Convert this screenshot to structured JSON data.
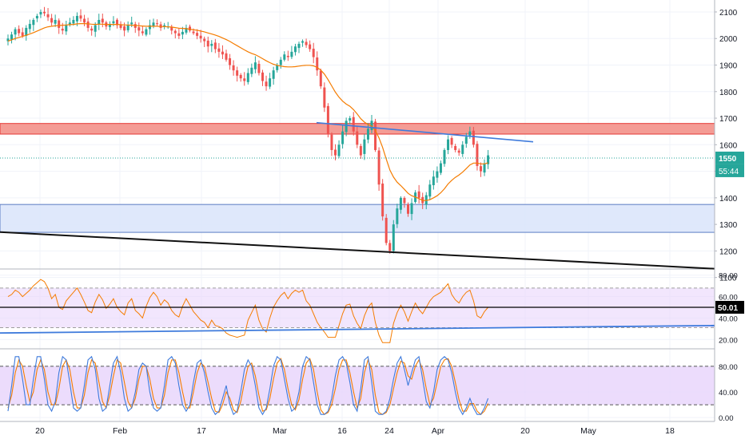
{
  "colors": {
    "bull": "#26a69a",
    "bear": "#ef5350",
    "ma": "#f57c00",
    "resistance_fill": "#f28b82",
    "resistance_edge": "#e53935",
    "support_fill": "#dbe6fb",
    "support_edge": "#5b7cc4",
    "trendline_blue": "#3f7bdc",
    "trendline_black": "#111111",
    "price_tag": "#26a69a",
    "osc_band": "#e9d6fb",
    "rsi_line": "#f57c00",
    "stoch_k": "#3f7bdc",
    "stoch_d": "#f57c00",
    "level_tag": "#000000"
  },
  "chart_data": [
    {
      "type": "candlestick",
      "pane": "price",
      "ylim": [
        1135,
        2145
      ],
      "yticks": [
        "2100",
        "2000",
        "1900",
        "1800",
        "1700",
        "1600",
        "1500",
        "1400",
        "1300",
        "1200",
        "1100"
      ],
      "xticks": [
        "20",
        "Feb",
        "17",
        "Mar",
        "16",
        "24",
        "Apr",
        "20",
        "May",
        "18"
      ],
      "current_price": 1550,
      "price_label": "1550",
      "countdown_label": "55:44",
      "grid": true,
      "resistance_zone": [
        1640,
        1680
      ],
      "support_zone": [
        1270,
        1375
      ],
      "trend_descending": [
        [
          1683,
          1611
        ]
      ],
      "trend_long": [
        [
          1271,
          1133
        ]
      ],
      "close": [
        2000,
        2015,
        2035,
        2020,
        2010,
        2040,
        2055,
        2070,
        2085,
        2100,
        2095,
        2080,
        2060,
        2070,
        2040,
        2030,
        2050,
        2060,
        2070,
        2085,
        2075,
        2060,
        2040,
        2030,
        2050,
        2070,
        2060,
        2045,
        2055,
        2065,
        2050,
        2040,
        2030,
        2050,
        2060,
        2040,
        2030,
        2020,
        2035,
        2050,
        2060,
        2055,
        2040,
        2050,
        2045,
        2030,
        2020,
        2010,
        2025,
        2040,
        2030,
        2020,
        2010,
        2000,
        1990,
        1970,
        1980,
        1960,
        1950,
        1940,
        1920,
        1900,
        1880,
        1860,
        1850,
        1840,
        1870,
        1890,
        1910,
        1870,
        1840,
        1820,
        1850,
        1880,
        1900,
        1920,
        1940,
        1930,
        1950,
        1970,
        1980,
        1990,
        1975,
        1960,
        1930,
        1880,
        1820,
        1740,
        1640,
        1580,
        1560,
        1600,
        1650,
        1690,
        1700,
        1650,
        1600,
        1560,
        1620,
        1660,
        1690,
        1580,
        1450,
        1330,
        1230,
        1200,
        1300,
        1360,
        1400,
        1380,
        1340,
        1380,
        1420,
        1400,
        1380,
        1410,
        1450,
        1480,
        1500,
        1530,
        1580,
        1620,
        1600,
        1580,
        1570,
        1600,
        1630,
        1650,
        1600,
        1520,
        1500,
        1530,
        1560
      ],
      "ma": [
        1990,
        1995,
        2000,
        2004,
        2008,
        2012,
        2017,
        2022,
        2028,
        2034,
        2040,
        2044,
        2046,
        2048,
        2049,
        2050,
        2051,
        2052,
        2053,
        2055,
        2056,
        2056,
        2055,
        2054,
        2053,
        2054,
        2054,
        2053,
        2053,
        2053,
        2053,
        2052,
        2051,
        2051,
        2050,
        2049,
        2048,
        2047,
        2046,
        2046,
        2046,
        2046,
        2045,
        2045,
        2044,
        2043,
        2041,
        2039,
        2038,
        2037,
        2035,
        2033,
        2031,
        2028,
        2025,
        2021,
        2017,
        2013,
        2008,
        2002,
        1996,
        1989,
        1981,
        1973,
        1965,
        1957,
        1950,
        1944,
        1939,
        1932,
        1924,
        1916,
        1909,
        1903,
        1899,
        1896,
        1894,
        1893,
        1893,
        1894,
        1896,
        1898,
        1899,
        1899,
        1897,
        1891,
        1881,
        1866,
        1845,
        1822,
        1798,
        1779,
        1764,
        1753,
        1745,
        1732,
        1716,
        1698,
        1685,
        1676,
        1670,
        1654,
        1626,
        1590,
        1546,
        1504,
        1478,
        1459,
        1446,
        1432,
        1417,
        1408,
        1403,
        1397,
        1390,
        1390,
        1393,
        1400,
        1408,
        1419,
        1434,
        1452,
        1466,
        1477,
        1486,
        1497,
        1510,
        1524,
        1531,
        1531,
        1528,
        1528,
        1532
      ]
    },
    {
      "type": "line",
      "pane": "rsi",
      "ylim": [
        12,
        85
      ],
      "yticks": [
        "80.00",
        "60.00",
        "40.00",
        "20.00"
      ],
      "band": [
        31,
        68
      ],
      "level": 50.01,
      "level_label": "50.01",
      "values": [
        60,
        62,
        66,
        64,
        60,
        63,
        66,
        70,
        73,
        76,
        74,
        68,
        58,
        62,
        50,
        48,
        56,
        60,
        64,
        68,
        62,
        55,
        47,
        45,
        55,
        62,
        57,
        49,
        53,
        58,
        50,
        46,
        43,
        54,
        58,
        47,
        44,
        40,
        51,
        59,
        64,
        60,
        52,
        57,
        54,
        47,
        43,
        41,
        51,
        58,
        52,
        46,
        42,
        38,
        36,
        31,
        38,
        33,
        32,
        30,
        26,
        24,
        23,
        22,
        23,
        24,
        38,
        45,
        52,
        38,
        30,
        27,
        40,
        50,
        56,
        61,
        64,
        58,
        63,
        66,
        64,
        66,
        56,
        52,
        44,
        36,
        31,
        27,
        22,
        22,
        22,
        33,
        44,
        52,
        53,
        42,
        35,
        30,
        42,
        50,
        54,
        36,
        24,
        17,
        17,
        17,
        35,
        45,
        52,
        46,
        37,
        46,
        54,
        48,
        44,
        50,
        56,
        60,
        62,
        64,
        68,
        72,
        62,
        57,
        54,
        60,
        64,
        66,
        56,
        42,
        40,
        46,
        50
      ],
      "trendline": [
        [
          26,
          33
        ]
      ]
    },
    {
      "type": "line",
      "pane": "stochastic",
      "ylim": [
        -6,
        106
      ],
      "yticks": [
        "80.00",
        "40.00",
        "0.00"
      ],
      "band": [
        20,
        80
      ],
      "series": [
        {
          "values": [
            10,
            50,
            95,
            95,
            60,
            20,
            20,
            60,
            95,
            95,
            60,
            20,
            10,
            25,
            70,
            95,
            90,
            55,
            15,
            10,
            15,
            50,
            90,
            95,
            75,
            30,
            10,
            15,
            50,
            85,
            95,
            70,
            30,
            10,
            15,
            40,
            75,
            85,
            80,
            40,
            15,
            10,
            15,
            50,
            90,
            95,
            85,
            50,
            20,
            10,
            20,
            55,
            85,
            90,
            70,
            40,
            15,
            5,
            10,
            30,
            50,
            20,
            5,
            10,
            40,
            75,
            90,
            80,
            50,
            15,
            5,
            15,
            45,
            80,
            95,
            90,
            60,
            30,
            10,
            15,
            40,
            80,
            95,
            90,
            55,
            20,
            5,
            5,
            10,
            30,
            65,
            90,
            95,
            85,
            55,
            20,
            10,
            45,
            90,
            95,
            55,
            10,
            5,
            5,
            10,
            30,
            60,
            85,
            95,
            75,
            50,
            70,
            90,
            95,
            60,
            25,
            15,
            40,
            75,
            90,
            95,
            90,
            70,
            40,
            15,
            5,
            15,
            30,
            15,
            5,
            5,
            15,
            30
          ]
        },
        {
          "values": [
            15,
            35,
            70,
            90,
            80,
            50,
            25,
            40,
            75,
            90,
            75,
            40,
            20,
            20,
            45,
            80,
            90,
            75,
            40,
            15,
            15,
            35,
            70,
            90,
            85,
            55,
            25,
            15,
            35,
            65,
            90,
            85,
            55,
            25,
            15,
            30,
            60,
            80,
            80,
            60,
            30,
            15,
            15,
            35,
            70,
            90,
            90,
            70,
            40,
            15,
            15,
            40,
            70,
            85,
            80,
            55,
            30,
            10,
            8,
            20,
            40,
            30,
            12,
            8,
            25,
            55,
            80,
            85,
            65,
            35,
            10,
            12,
            30,
            60,
            85,
            92,
            75,
            45,
            20,
            12,
            28,
            60,
            85,
            92,
            75,
            40,
            12,
            5,
            8,
            20,
            45,
            75,
            90,
            90,
            70,
            40,
            15,
            30,
            70,
            90,
            75,
            35,
            8,
            5,
            8,
            20,
            45,
            70,
            88,
            85,
            65,
            60,
            80,
            90,
            75,
            45,
            20,
            30,
            55,
            80,
            90,
            92,
            80,
            55,
            28,
            10,
            10,
            22,
            22,
            10,
            5,
            10,
            22
          ]
        }
      ]
    }
  ]
}
